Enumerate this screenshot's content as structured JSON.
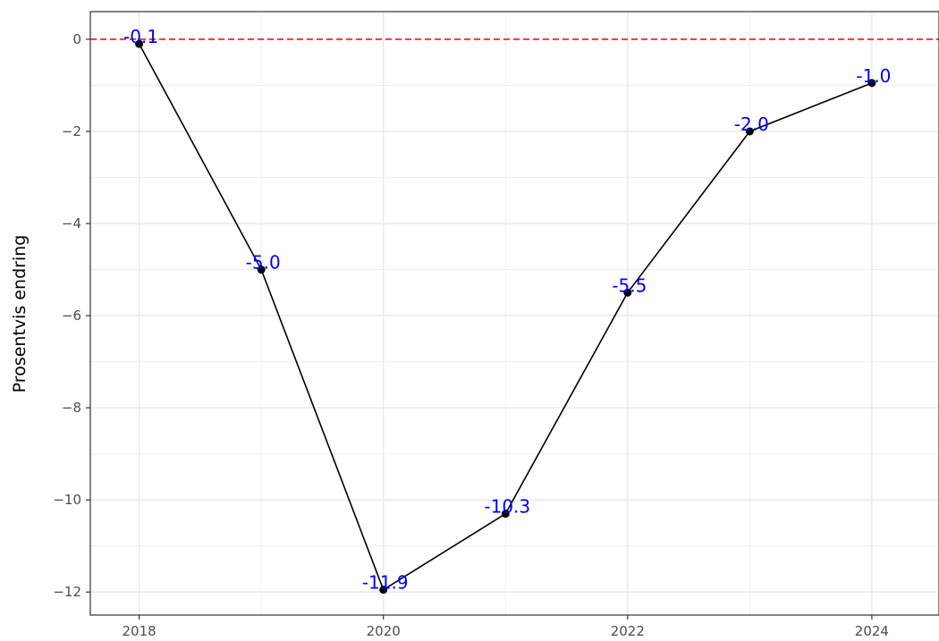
{
  "chart_data": {
    "type": "line",
    "title": "",
    "xlabel": "",
    "ylabel": "Prosentvis endring",
    "x": [
      2018,
      2019,
      2020,
      2021,
      2022,
      2023,
      2024
    ],
    "series": [
      {
        "values": [
          -0.1,
          -5.0,
          -11.95,
          -10.3,
          -5.5,
          -2.0,
          -0.95
        ],
        "labels": [
          "-0.1",
          "-5.0",
          "-11.9",
          "-10.3",
          "-5.5",
          "-2.0",
          "-1.0"
        ]
      }
    ],
    "xlim": [
      2017.6,
      2024.55
    ],
    "ylim": [
      -12.5,
      0.6
    ],
    "x_ticks": [
      2018,
      2020,
      2022,
      2024
    ],
    "x_tick_labels": [
      "2018",
      "2020",
      "2022",
      "2024"
    ],
    "y_ticks": [
      0,
      -2,
      -4,
      -6,
      -8,
      -10,
      -12
    ],
    "y_tick_labels": [
      "0",
      "−2",
      "−4",
      "−6",
      "−8",
      "−10",
      "−12"
    ],
    "reference_line": {
      "y": 0,
      "style": "dashed",
      "color": "#ff3333"
    },
    "grid": true,
    "legend": "none",
    "colors": {
      "line": "#000000",
      "label": "#0000ff",
      "grid": "#ebebeb"
    }
  }
}
